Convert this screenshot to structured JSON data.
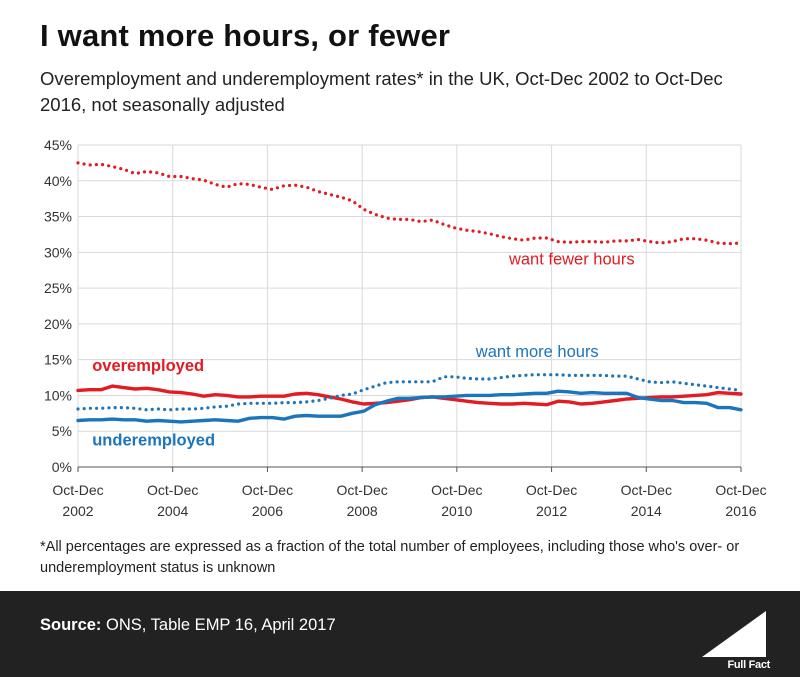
{
  "title": "I want more hours, or fewer",
  "subtitle": "Overemployment and underemployment rates* in the UK, Oct-Dec 2002 to Oct-Dec 2016, not seasonally adjusted",
  "footnote": "*All percentages are expressed as a fraction of the total number of employees, including those who's over- or underemployment status is unknown",
  "source": {
    "label": "Source:",
    "text": "ONS, Table EMP 16, April 2017"
  },
  "brand": "Full Fact",
  "chart_data": {
    "type": "line",
    "x_start": 2002,
    "x_end": 2016,
    "ylim": [
      0,
      45
    ],
    "y_ticks": [
      0,
      5,
      10,
      15,
      20,
      25,
      30,
      35,
      40,
      45
    ],
    "y_tick_labels": [
      "0%",
      "5%",
      "10%",
      "15%",
      "20%",
      "25%",
      "30%",
      "35%",
      "40%",
      "45%"
    ],
    "x_ticks": [
      2002,
      2004,
      2006,
      2008,
      2010,
      2012,
      2014,
      2016
    ],
    "x_tick_labels": [
      [
        "Oct-Dec",
        "2002"
      ],
      [
        "Oct-Dec",
        "2004"
      ],
      [
        "Oct-Dec",
        "2006"
      ],
      [
        "Oct-Dec",
        "2008"
      ],
      [
        "Oct-Dec",
        "2010"
      ],
      [
        "Oct-Dec",
        "2012"
      ],
      [
        "Oct-Dec",
        "2014"
      ],
      [
        "Oct-Dec",
        "2016"
      ]
    ],
    "grid": true,
    "series": [
      {
        "name": "want fewer hours",
        "style": "dotted",
        "color": "#e31b23",
        "values": [
          42.5,
          42.2,
          42.3,
          42.0,
          41.6,
          41.0,
          41.3,
          41.1,
          40.6,
          40.6,
          40.3,
          40.1,
          39.5,
          39.1,
          39.6,
          39.5,
          39.1,
          38.8,
          39.3,
          39.4,
          39.1,
          38.5,
          38.1,
          37.7,
          37.2,
          36.0,
          35.3,
          34.8,
          34.6,
          34.6,
          34.3,
          34.5,
          33.9,
          33.4,
          33.1,
          32.9,
          32.6,
          32.2,
          31.9,
          31.7,
          32.0,
          32.0,
          31.5,
          31.4,
          31.5,
          31.5,
          31.4,
          31.6,
          31.6,
          31.8,
          31.5,
          31.3,
          31.5,
          31.9,
          31.9,
          31.7,
          31.3,
          31.2,
          31.3
        ]
      },
      {
        "name": "overemployed",
        "style": "solid",
        "color": "#e31b23",
        "values": [
          10.7,
          10.8,
          10.8,
          11.3,
          11.1,
          10.9,
          11.0,
          10.8,
          10.5,
          10.4,
          10.2,
          9.9,
          10.1,
          10.0,
          9.8,
          9.8,
          9.9,
          9.9,
          9.9,
          10.2,
          10.3,
          10.1,
          9.8,
          9.5,
          9.1,
          8.8,
          8.9,
          9.0,
          9.2,
          9.4,
          9.7,
          9.8,
          9.6,
          9.4,
          9.2,
          9.0,
          8.9,
          8.8,
          8.8,
          8.9,
          8.8,
          8.7,
          9.2,
          9.1,
          8.8,
          8.9,
          9.1,
          9.3,
          9.5,
          9.6,
          9.7,
          9.8,
          9.8,
          9.9,
          10.0,
          10.1,
          10.4,
          10.3,
          10.2
        ]
      },
      {
        "name": "want more hours",
        "style": "dotted",
        "color": "#1b75bc",
        "values": [
          8.1,
          8.2,
          8.2,
          8.3,
          8.3,
          8.2,
          8.0,
          8.1,
          8.0,
          8.1,
          8.1,
          8.2,
          8.4,
          8.5,
          8.8,
          8.9,
          8.9,
          8.9,
          9.0,
          9.0,
          9.1,
          9.3,
          9.6,
          10.0,
          10.2,
          10.8,
          11.3,
          11.8,
          11.9,
          11.9,
          11.9,
          11.9,
          12.6,
          12.6,
          12.4,
          12.3,
          12.3,
          12.5,
          12.7,
          12.8,
          12.9,
          12.9,
          12.9,
          12.8,
          12.8,
          12.8,
          12.8,
          12.7,
          12.7,
          12.3,
          11.9,
          11.8,
          11.9,
          11.7,
          11.5,
          11.3,
          11.1,
          10.9,
          10.7
        ]
      },
      {
        "name": "underemployed",
        "style": "solid",
        "color": "#1b75bc",
        "values": [
          6.5,
          6.6,
          6.6,
          6.7,
          6.6,
          6.6,
          6.4,
          6.5,
          6.4,
          6.3,
          6.4,
          6.5,
          6.6,
          6.5,
          6.4,
          6.8,
          6.9,
          6.9,
          6.7,
          7.1,
          7.2,
          7.1,
          7.1,
          7.1,
          7.5,
          7.8,
          8.7,
          9.2,
          9.6,
          9.6,
          9.7,
          9.8,
          9.8,
          9.9,
          10.0,
          10.0,
          10.0,
          10.1,
          10.1,
          10.2,
          10.3,
          10.3,
          10.6,
          10.5,
          10.3,
          10.4,
          10.3,
          10.3,
          10.3,
          9.7,
          9.5,
          9.3,
          9.3,
          9.0,
          9.0,
          8.9,
          8.3,
          8.3,
          8.0
        ]
      }
    ],
    "annotations": [
      {
        "text": "want fewer hours",
        "x": 2011.1,
        "y": 28.3,
        "color": "#e31b23",
        "bold": false,
        "anchor": "start"
      },
      {
        "text": "want more hours",
        "x": 2010.4,
        "y": 15.4,
        "color": "#1b75bc",
        "bold": false,
        "anchor": "start"
      },
      {
        "text": "overemployed",
        "x": 2002.3,
        "y": 13.4,
        "color": "#e31b23",
        "bold": true,
        "anchor": "start"
      },
      {
        "text": "underemployed",
        "x": 2002.3,
        "y": 3.0,
        "color": "#1b75bc",
        "bold": true,
        "anchor": "start"
      }
    ]
  }
}
